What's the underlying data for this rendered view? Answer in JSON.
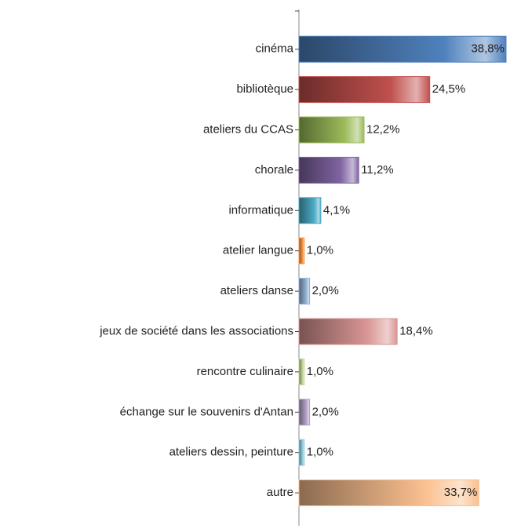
{
  "chart_data": {
    "type": "bar",
    "orientation": "horizontal",
    "categories": [
      "cinéma",
      "bibliotèque",
      "ateliers du CCAS",
      "chorale",
      "informatique",
      "atelier langue",
      "ateliers danse",
      "jeux de société dans les associations",
      "rencontre culinaire",
      "échange sur le souvenirs d'Antan",
      "ateliers dessin, peinture",
      "autre"
    ],
    "values": [
      38.8,
      24.5,
      12.2,
      11.2,
      4.1,
      1.0,
      2.0,
      18.4,
      1.0,
      2.0,
      1.0,
      33.7
    ],
    "value_labels": [
      "38,8%",
      "24,5%",
      "12,2%",
      "11,2%",
      "4,1%",
      "1,0%",
      "2,0%",
      "18,4%",
      "1,0%",
      "2,0%",
      "1,0%",
      "33,7%"
    ],
    "colors": [
      "#4f81bd",
      "#c0504d",
      "#9bbb59",
      "#8064a2",
      "#4bacc6",
      "#f79646",
      "#95b3d7",
      "#d99694",
      "#c3d69b",
      "#b3a2c7",
      "#93cddd",
      "#fac090"
    ]
  }
}
